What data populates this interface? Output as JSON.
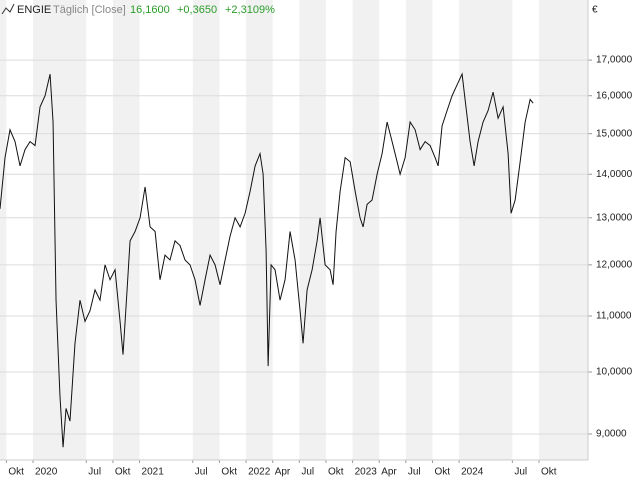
{
  "chart_data": {
    "type": "line",
    "title": "ENGIE",
    "subtitle": "Täglich [Close]",
    "last_price": "16,1600",
    "change": "+0,3650",
    "change_pct": "+2,3109%",
    "currency": "€",
    "log_scale": true,
    "grid": true,
    "series": [
      {
        "name": "ENGIE",
        "color": "#111111",
        "x": [
          2019.69,
          2019.737,
          2019.784,
          2019.831,
          2019.878,
          2019.925,
          2019.972,
          2020.019,
          2020.066,
          2020.113,
          2020.16,
          2020.188,
          2020.216,
          2020.253,
          2020.282,
          2020.31,
          2020.347,
          2020.394,
          2020.441,
          2020.488,
          2020.535,
          2020.582,
          2020.629,
          2020.676,
          2020.723,
          2020.77,
          2020.817,
          2020.845,
          2020.883,
          2020.911,
          2020.958,
          2021.005,
          2021.052,
          2021.099,
          2021.146,
          2021.192,
          2021.239,
          2021.286,
          2021.333,
          2021.38,
          2021.427,
          2021.474,
          2021.521,
          2021.568,
          2021.615,
          2021.662,
          2021.709,
          2021.756,
          2021.803,
          2021.85,
          2021.897,
          2021.944,
          2021.991,
          2022.038,
          2022.085,
          2022.131,
          2022.16,
          2022.188,
          2022.207,
          2022.235,
          2022.272,
          2022.319,
          2022.366,
          2022.413,
          2022.46,
          2022.507,
          2022.535,
          2022.573,
          2022.62,
          2022.667,
          2022.695,
          2022.742,
          2022.789,
          2022.817,
          2022.845,
          2022.883,
          2022.93,
          2022.977,
          2023.024,
          2023.07,
          2023.099,
          2023.136,
          2023.183,
          2023.23,
          2023.277,
          2023.324,
          2023.371,
          2023.418,
          2023.446,
          2023.493,
          2023.54,
          2023.587,
          2023.634,
          2023.681,
          2023.728,
          2023.775,
          2023.803,
          2023.84,
          2023.887,
          2023.934,
          2023.981,
          2024.028,
          2024.056,
          2024.103,
          2024.141,
          2024.178,
          2024.225,
          2024.272,
          2024.319,
          2024.366,
          2024.413,
          2024.46,
          2024.488,
          2024.526,
          2024.573,
          2024.62,
          2024.667,
          2024.695
        ],
        "values": [
          13.2,
          14.4,
          15.1,
          14.8,
          14.2,
          14.6,
          14.8,
          14.7,
          15.7,
          16.0,
          16.6,
          15.3,
          11.3,
          9.6,
          8.8,
          9.4,
          9.2,
          10.5,
          11.3,
          10.9,
          11.1,
          11.5,
          11.3,
          12.0,
          11.7,
          11.9,
          10.9,
          10.3,
          11.5,
          12.5,
          12.7,
          13.0,
          13.7,
          12.8,
          12.7,
          11.7,
          12.2,
          12.1,
          12.5,
          12.4,
          12.1,
          12.0,
          11.7,
          11.2,
          11.7,
          12.2,
          12.0,
          11.6,
          12.1,
          12.6,
          13.0,
          12.8,
          13.1,
          13.6,
          14.2,
          14.5,
          14.0,
          12.3,
          10.1,
          12.0,
          11.9,
          11.3,
          11.7,
          12.7,
          12.1,
          11.1,
          10.5,
          11.5,
          11.9,
          12.5,
          13.0,
          12.0,
          11.9,
          11.6,
          12.7,
          13.6,
          14.4,
          14.3,
          13.6,
          13.0,
          12.8,
          13.3,
          13.4,
          14.0,
          14.5,
          15.3,
          14.8,
          14.3,
          14.0,
          14.4,
          15.3,
          15.1,
          14.6,
          14.8,
          14.7,
          14.4,
          14.2,
          15.2,
          15.6,
          16.0,
          16.3,
          16.6,
          15.9,
          14.8,
          14.2,
          14.8,
          15.3,
          15.6,
          16.1,
          15.4,
          15.7,
          14.5,
          13.1,
          13.4,
          14.3,
          15.3,
          15.9,
          15.8
        ]
      }
    ],
    "xlim": [
      2019.69,
      2025.21
    ],
    "xticks": [
      {
        "value": 2019.75,
        "label": "Okt"
      },
      2020,
      {
        "value": 2020.5,
        "label": "Jul"
      },
      {
        "value": 2020.75,
        "label": "Okt"
      },
      2021,
      {
        "value": 2021.5,
        "label": "Jul"
      },
      {
        "value": 2021.75,
        "label": "Okt"
      },
      2022,
      {
        "value": 2022.25,
        "label": "Apr"
      },
      {
        "value": 2022.5,
        "label": "Jul"
      },
      {
        "value": 2022.75,
        "label": "Okt"
      },
      2023,
      {
        "value": 2023.25,
        "label": "Apr"
      },
      {
        "value": 2023.5,
        "label": "Jul"
      },
      {
        "value": 2023.75,
        "label": "Okt"
      },
      2024,
      {
        "value": 2024.5,
        "label": "Jul"
      },
      {
        "value": 2024.75,
        "label": "Okt"
      }
    ],
    "ylim": [
      8.61,
      18.83
    ],
    "yticks": [
      {
        "value": 9,
        "label": "9,0000"
      },
      {
        "value": 10,
        "label": "10,0000"
      },
      {
        "value": 11,
        "label": "11,0000"
      },
      {
        "value": 12,
        "label": "12,0000"
      },
      {
        "value": 13,
        "label": "13,0000"
      },
      {
        "value": 14,
        "label": "14,0000"
      },
      {
        "value": 15,
        "label": "15,0000"
      },
      {
        "value": 16,
        "label": "16,0000"
      },
      {
        "value": 17,
        "label": "17,0000"
      }
    ]
  }
}
